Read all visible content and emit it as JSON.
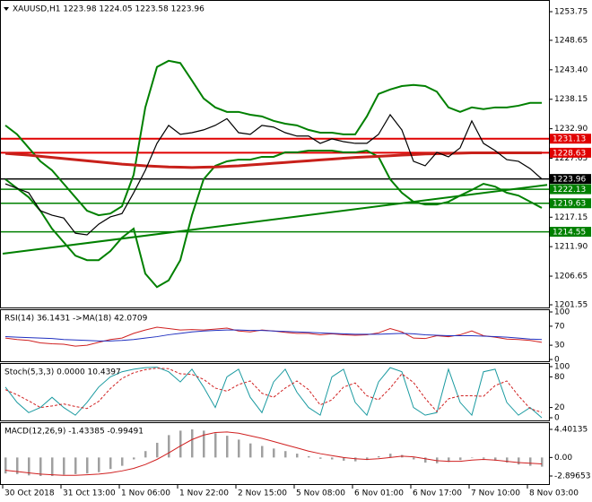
{
  "chart_data": [
    {
      "type": "line",
      "title": "XAUUSD,H1 1223.98 1224.05 1223.58 1223.96",
      "categories": [
        "30 Oct 2018",
        null,
        null,
        null,
        null,
        "31 Oct 13:00",
        null,
        null,
        null,
        null,
        "1 Nov 06:00",
        null,
        null,
        null,
        null,
        "1 Nov 22:00",
        null,
        null,
        null,
        null,
        "2 Nov 15:00",
        null,
        null,
        null,
        null,
        "5 Nov 08:00",
        null,
        null,
        null,
        null,
        "6 Nov 01:00",
        null,
        null,
        null,
        null,
        "6 Nov 17:00",
        null,
        null,
        null,
        null,
        "7 Nov 10:00",
        null,
        null,
        null,
        null,
        "8 Nov 03:00",
        null
      ],
      "ylim": [
        1201.07,
        1255.51
      ],
      "yticks": [
        1253.75,
        1248.65,
        {
          "value": 1243.4,
          "label": "1243.40"
        },
        1238.15,
        {
          "value": 1232.9,
          "label": "1232.90"
        },
        1227.65,
        {
          "value": 1222.4,
          "label": "1222.40"
        },
        1217.15,
        {
          "value": 1211.9,
          "label": "1211.90"
        },
        1206.65,
        1201.55
      ],
      "series": [
        {
          "type": "line",
          "color": "#008000",
          "width": 2,
          "values": [
            1233.5,
            1231.9,
            1229.5,
            1227.1,
            1225.5,
            1223.1,
            1220.7,
            1218.3,
            1217.5,
            1217.8,
            1219.1,
            1224.7,
            1236.7,
            1243.9,
            1245.0,
            1244.6,
            1241.5,
            1238.3,
            1236.7,
            1235.9,
            1235.9,
            1235.4,
            1235.1,
            1234.3,
            1233.8,
            1233.5,
            1232.7,
            1232.2,
            1232.2,
            1231.9,
            1231.9,
            1235.1,
            1239.1,
            1239.9,
            1240.5,
            1240.7,
            1240.5,
            1239.5,
            1236.7,
            1235.9,
            1236.7,
            1236.4,
            1236.7,
            1236.7,
            1237.0,
            1237.5,
            1237.5
          ]
        },
        {
          "type": "line",
          "color": "#008000",
          "width": 2,
          "values": [
            1223.9,
            1222.3,
            1220.7,
            1218.3,
            1215.1,
            1212.7,
            1210.3,
            1209.5,
            1209.5,
            1211.1,
            1213.5,
            1215.1,
            1207.1,
            1204.7,
            1205.9,
            1209.5,
            1217.5,
            1223.9,
            1226.3,
            1227.1,
            1227.4,
            1227.4,
            1227.9,
            1227.9,
            1228.7,
            1228.7,
            1229.0,
            1229.0,
            1229.0,
            1228.7,
            1228.7,
            1229.0,
            1227.9,
            1223.9,
            1221.5,
            1219.9,
            1219.4,
            1219.4,
            1219.9,
            1221.0,
            1222.0,
            1223.1,
            1222.6,
            1221.5,
            1221.0,
            1219.9,
            1218.8
          ]
        },
        {
          "type": "line",
          "color": "#c8201a",
          "width": 3,
          "values": [
            1228.5,
            1228.35,
            1228.2,
            1228.0,
            1227.8,
            1227.6,
            1227.4,
            1227.2,
            1227.0,
            1226.8,
            1226.6,
            1226.45,
            1226.3,
            1226.2,
            1226.1,
            1226.05,
            1226.0,
            1226.05,
            1226.1,
            1226.2,
            1226.3,
            1226.45,
            1226.6,
            1226.75,
            1226.9,
            1227.05,
            1227.2,
            1227.35,
            1227.5,
            1227.65,
            1227.8,
            1227.9,
            1228.0,
            1228.1,
            1228.2,
            1228.3,
            1228.4,
            1228.45,
            1228.5,
            1228.55,
            1228.6,
            1228.6,
            1228.6,
            1228.6,
            1228.6,
            1228.6,
            1228.6
          ]
        },
        {
          "type": "line",
          "color": "#000000",
          "width": 1.2,
          "values": [
            1223.1,
            1222.3,
            1221.5,
            1218.3,
            1217.5,
            1217.0,
            1214.3,
            1214.0,
            1215.9,
            1217.2,
            1217.8,
            1221.5,
            1225.5,
            1230.3,
            1233.5,
            1231.9,
            1232.2,
            1232.7,
            1233.5,
            1234.7,
            1232.2,
            1231.9,
            1233.5,
            1233.2,
            1232.2,
            1231.6,
            1231.6,
            1230.3,
            1231.1,
            1230.6,
            1230.3,
            1230.3,
            1231.9,
            1235.4,
            1232.7,
            1227.1,
            1226.3,
            1228.7,
            1227.9,
            1229.5,
            1234.3,
            1230.3,
            1229.0,
            1227.4,
            1227.1,
            1225.8,
            1223.96
          ]
        }
      ],
      "levels": [
        {
          "value": 1231.13,
          "color": "#e00000"
        },
        {
          "value": 1228.63,
          "color": "#e00000"
        },
        {
          "value": 1223.96,
          "color": "#000000"
        },
        {
          "value": 1222.13,
          "color": "#008000"
        },
        {
          "value": 1219.63,
          "color": "#008000"
        },
        {
          "value": 1214.55,
          "color": "#008000"
        }
      ],
      "trend_lines": [
        {
          "values": [
            1210.65,
            1222.9
          ],
          "color": "#008000"
        }
      ]
    },
    {
      "type": "line",
      "title": "RSI(14) 36.1431 ->MA(18) 42.0709",
      "ylim": [
        0,
        100
      ],
      "yticks": [
        100,
        70,
        30,
        0
      ],
      "series": [
        {
          "type": "line",
          "color": "#d02020",
          "width": 1,
          "values": [
            45,
            42,
            40,
            35,
            33,
            32,
            28,
            30,
            36,
            42,
            45,
            55,
            62,
            68,
            65,
            62,
            63,
            62,
            64,
            66,
            60,
            58,
            62,
            60,
            57,
            55,
            55,
            52,
            54,
            52,
            51,
            52,
            56,
            65,
            58,
            45,
            44,
            50,
            48,
            52,
            60,
            50,
            47,
            43,
            42,
            40,
            36.1431
          ]
        },
        {
          "type": "line",
          "color": "#2030c0",
          "width": 1,
          "values": [
            48,
            47,
            46,
            45,
            44,
            42,
            41,
            40,
            39,
            39,
            40,
            42,
            45,
            48,
            52,
            55,
            58,
            60,
            61,
            62,
            62,
            61,
            61,
            60,
            59,
            58,
            57,
            56,
            55,
            54,
            53,
            53,
            53,
            54,
            55,
            54,
            52,
            51,
            50,
            50,
            50,
            49,
            48,
            47,
            45,
            43,
            42.0709
          ]
        }
      ]
    },
    {
      "type": "line",
      "title": "Stoch(5,3,3) 0.0000 10.4397",
      "ylim": [
        0,
        100
      ],
      "yticks": [
        100,
        80,
        20,
        0
      ],
      "series": [
        {
          "type": "line",
          "color": "#1a9aa0",
          "width": 1,
          "values": [
            60,
            30,
            10,
            20,
            40,
            20,
            5,
            30,
            60,
            80,
            90,
            95,
            98,
            99,
            90,
            70,
            95,
            60,
            20,
            80,
            95,
            40,
            10,
            70,
            95,
            50,
            20,
            5,
            80,
            95,
            30,
            5,
            70,
            98,
            90,
            20,
            5,
            10,
            95,
            30,
            5,
            90,
            95,
            30,
            5,
            20,
            0
          ]
        },
        {
          "type": "line",
          "color": "#d02020",
          "width": 1,
          "dash": true,
          "values": [
            55,
            45,
            33,
            20,
            23,
            27,
            22,
            18,
            32,
            57,
            77,
            88,
            94,
            97,
            96,
            86,
            85,
            75,
            58,
            52,
            65,
            72,
            48,
            40,
            58,
            72,
            55,
            25,
            35,
            60,
            68,
            43,
            35,
            58,
            86,
            69,
            38,
            12,
            37,
            43,
            43,
            42,
            63,
            72,
            43,
            18,
            10.4397
          ]
        }
      ]
    },
    {
      "type": "bar",
      "title": "MACD(12,26,9) -1.43385 -0.99491",
      "ylim": [
        -4.16,
        5.38
      ],
      "yticks": [
        4.40135,
        {
          "value": 0,
          "label": "0.00"
        },
        -2.89653
      ],
      "series": [
        {
          "type": "bar",
          "color": "#a0a0a0",
          "values": [
            -2.5,
            -2.6,
            -2.8,
            -2.9,
            -2.9,
            -2.7,
            -2.6,
            -2.5,
            -2.3,
            -1.8,
            -1.3,
            -0.3,
            1.0,
            2.3,
            3.5,
            4.2,
            4.4,
            4.2,
            3.8,
            3.4,
            2.8,
            2.2,
            1.8,
            1.4,
            1.0,
            0.6,
            0.2,
            -0.2,
            -0.3,
            -0.5,
            -0.6,
            -0.4,
            0.2,
            0.6,
            0.4,
            -0.3,
            -0.8,
            -0.9,
            -0.7,
            -0.4,
            0.0,
            -0.2,
            -0.5,
            -0.8,
            -1.1,
            -1.3,
            -1.43385
          ]
        },
        {
          "type": "line",
          "color": "#d02020",
          "width": 1,
          "values": [
            -2.0,
            -2.2,
            -2.4,
            -2.6,
            -2.7,
            -2.8,
            -2.8,
            -2.7,
            -2.6,
            -2.4,
            -2.1,
            -1.7,
            -1.1,
            -0.3,
            0.7,
            1.8,
            2.8,
            3.5,
            3.9,
            4.0,
            3.8,
            3.4,
            3.0,
            2.5,
            2.0,
            1.5,
            1.0,
            0.6,
            0.3,
            0.0,
            -0.2,
            -0.3,
            -0.2,
            0.0,
            0.2,
            0.1,
            -0.2,
            -0.5,
            -0.6,
            -0.6,
            -0.4,
            -0.3,
            -0.4,
            -0.6,
            -0.8,
            -0.9,
            -0.99491
          ]
        }
      ]
    }
  ]
}
